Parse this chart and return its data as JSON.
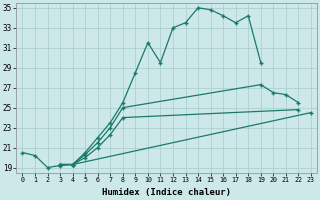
{
  "xlabel": "Humidex (Indice chaleur)",
  "background_color": "#cce8e8",
  "grid_color": "#aacccc",
  "line_color": "#1a7a6a",
  "xlim": [
    -0.5,
    23.5
  ],
  "ylim": [
    18.5,
    35.5
  ],
  "yticks": [
    19,
    21,
    23,
    25,
    27,
    29,
    31,
    33,
    35
  ],
  "xticks": [
    0,
    1,
    2,
    3,
    4,
    5,
    6,
    7,
    8,
    9,
    10,
    11,
    12,
    13,
    14,
    15,
    16,
    17,
    18,
    19,
    20,
    21,
    22,
    23
  ],
  "series1_y": [
    20.5,
    20.2,
    19.0,
    19.2,
    19.3,
    20.5,
    22.0,
    23.5,
    25.5,
    28.5,
    31.5,
    29.5,
    33.0,
    33.5,
    35.0,
    34.8,
    34.2,
    33.5,
    34.2,
    29.5,
    null,
    null,
    null,
    null
  ],
  "series2_y": [
    null,
    null,
    null,
    19.3,
    19.3,
    20.3,
    21.5,
    23.0,
    25.0,
    null,
    null,
    null,
    null,
    null,
    null,
    null,
    null,
    null,
    null,
    27.3,
    26.5,
    26.3,
    25.5,
    null
  ],
  "series3_y": [
    null,
    null,
    null,
    19.3,
    19.3,
    20.0,
    21.0,
    22.3,
    24.0,
    null,
    null,
    null,
    null,
    null,
    null,
    null,
    null,
    null,
    null,
    null,
    null,
    null,
    24.8,
    null
  ],
  "series4_y": [
    null,
    null,
    null,
    19.3,
    19.3,
    null,
    null,
    null,
    null,
    null,
    null,
    null,
    null,
    null,
    null,
    null,
    null,
    null,
    null,
    null,
    null,
    null,
    null,
    24.5
  ]
}
